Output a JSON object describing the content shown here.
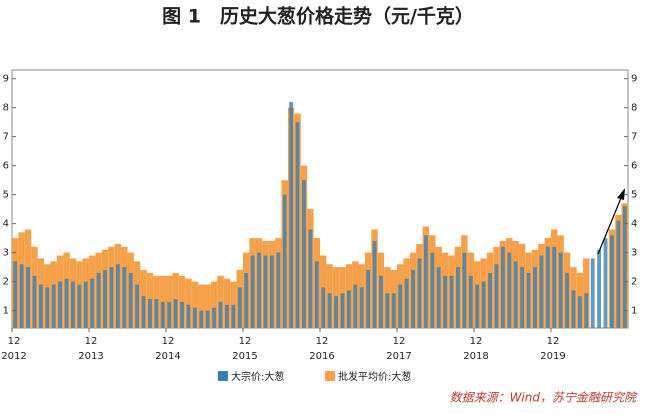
{
  "chart_data": {
    "type": "bar",
    "title": "图 1　历史大葱价格走势（元/千克）",
    "source": "数据来源：Wind，苏宁金融研究院",
    "categories": [
      "12",
      null,
      null,
      null,
      null,
      null,
      null,
      null,
      null,
      null,
      null,
      null,
      "12",
      null,
      null,
      null,
      null,
      null,
      null,
      null,
      null,
      null,
      null,
      null,
      "12",
      null,
      null,
      null,
      null,
      null,
      null,
      null,
      null,
      null,
      null,
      null,
      "12",
      null,
      null,
      null,
      null,
      null,
      null,
      null,
      null,
      null,
      null,
      null,
      "12",
      null,
      null,
      null,
      null,
      null,
      null,
      null,
      null,
      null,
      null,
      null,
      "12",
      null,
      null,
      null,
      null,
      null,
      null,
      null,
      null,
      null,
      null,
      null,
      "12",
      null,
      null,
      null,
      null,
      null,
      null,
      null,
      null,
      null,
      null,
      null,
      "12",
      null,
      null,
      null,
      null,
      null,
      null,
      null,
      null,
      null,
      null,
      null
    ],
    "x_group_labels": [
      "2012",
      "2013",
      "2014",
      "2015",
      "2016",
      "2017",
      "2018",
      "2019"
    ],
    "series": [
      {
        "name": "批发平均价:大葱",
        "color": "#f5a04a",
        "values": [
          3.5,
          3.7,
          3.8,
          3.2,
          2.8,
          2.6,
          2.7,
          2.9,
          3.0,
          2.8,
          2.7,
          2.8,
          2.9,
          3.0,
          3.1,
          3.2,
          3.3,
          3.2,
          3.0,
          2.7,
          2.4,
          2.3,
          2.2,
          2.2,
          2.2,
          2.3,
          2.2,
          2.1,
          2.0,
          1.9,
          1.9,
          2.0,
          2.2,
          2.1,
          2.0,
          2.4,
          3.0,
          3.5,
          3.5,
          3.4,
          3.4,
          3.5,
          5.5,
          8.0,
          7.8,
          6.0,
          4.5,
          3.5,
          2.9,
          2.6,
          2.5,
          2.5,
          2.6,
          2.7,
          2.6,
          3.0,
          3.8,
          3.0,
          2.5,
          2.4,
          2.6,
          2.8,
          3.0,
          3.3,
          3.9,
          3.6,
          3.2,
          3.0,
          2.9,
          3.2,
          3.6,
          3.0,
          2.7,
          2.8,
          3.0,
          3.2,
          3.4,
          3.5,
          3.4,
          3.3,
          3.0,
          3.1,
          3.3,
          3.5,
          3.8,
          3.6,
          3.0,
          2.5,
          2.3,
          2.8,
          null,
          null,
          null,
          3.8,
          4.3,
          4.7
        ]
      },
      {
        "name": "大宗价:大葱",
        "color": "#3a7fb0",
        "values": [
          2.7,
          2.6,
          2.5,
          2.2,
          1.9,
          1.8,
          1.9,
          2.0,
          2.1,
          2.0,
          1.9,
          2.0,
          2.1,
          2.3,
          2.4,
          2.5,
          2.6,
          2.5,
          2.3,
          1.9,
          1.5,
          1.4,
          1.4,
          1.3,
          1.3,
          1.4,
          1.3,
          1.2,
          1.1,
          1.0,
          1.0,
          1.1,
          1.3,
          1.2,
          1.2,
          1.8,
          2.3,
          2.9,
          3.0,
          2.9,
          2.9,
          3.0,
          5.0,
          8.2,
          7.5,
          5.5,
          3.8,
          2.7,
          1.8,
          1.6,
          1.5,
          1.6,
          1.7,
          1.9,
          1.8,
          2.4,
          3.4,
          2.2,
          1.6,
          1.6,
          1.9,
          2.1,
          2.4,
          2.8,
          3.6,
          3.0,
          2.5,
          2.2,
          2.2,
          2.5,
          3.0,
          2.2,
          1.9,
          2.0,
          2.3,
          2.6,
          3.2,
          3.0,
          2.7,
          2.5,
          2.3,
          2.5,
          2.9,
          3.2,
          3.2,
          3.0,
          2.3,
          1.7,
          1.5,
          1.6,
          2.8,
          3.1,
          3.5,
          3.6,
          4.1,
          4.6
        ]
      }
    ],
    "ylim": [
      0.4,
      9.3
    ],
    "yticks": [
      1,
      2,
      3,
      4,
      5,
      6,
      7,
      8,
      9
    ]
  }
}
